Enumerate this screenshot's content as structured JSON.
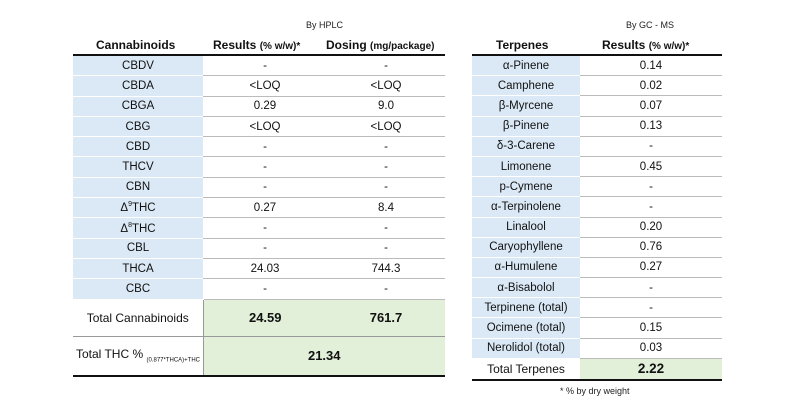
{
  "captions": {
    "hplc": "By HPLC",
    "gcms": "By GC - MS"
  },
  "cannabinoids": {
    "header_name": "Cannabinoids",
    "header_results_main": "Results",
    "header_results_unit": "(% w/w)*",
    "header_dosing_main": "Dosing",
    "header_dosing_unit": "(mg/package)",
    "rows": [
      {
        "name": "CBDV",
        "result": "-",
        "dosing": "-"
      },
      {
        "name": "CBDA",
        "result": "<LOQ",
        "dosing": "<LOQ"
      },
      {
        "name": "CBGA",
        "result": "0.29",
        "dosing": "9.0"
      },
      {
        "name": "CBG",
        "result": "<LOQ",
        "dosing": "<LOQ"
      },
      {
        "name": "CBD",
        "result": "-",
        "dosing": "-"
      },
      {
        "name": "THCV",
        "result": "-",
        "dosing": "-"
      },
      {
        "name": "CBN",
        "result": "-",
        "dosing": "-"
      },
      {
        "name": "THC",
        "prefix": "Δ",
        "sup": "9",
        "result": "0.27",
        "dosing": "8.4"
      },
      {
        "name": "THC",
        "prefix": "Δ",
        "sup": "8",
        "result": "-",
        "dosing": "-"
      },
      {
        "name": "CBL",
        "result": "-",
        "dosing": "-"
      },
      {
        "name": "THCA",
        "result": "24.03",
        "dosing": "744.3"
      },
      {
        "name": "CBC",
        "result": "-",
        "dosing": "-"
      }
    ],
    "total_label": "Total Cannabinoids",
    "total_result": "24.59",
    "total_dosing": "761.7",
    "thc_label": "Total THC %",
    "thc_formula": "(0.877*THCA)+THC",
    "thc_value": "21.34"
  },
  "terpenes": {
    "header_name": "Terpenes",
    "header_results_main": "Results",
    "header_results_unit": "(% w/w)*",
    "rows": [
      {
        "name": "α-Pinene",
        "result": "0.14"
      },
      {
        "name": "Camphene",
        "result": "0.02"
      },
      {
        "name": "β-Myrcene",
        "result": "0.07"
      },
      {
        "name": "β-Pinene",
        "result": "0.13"
      },
      {
        "name": "δ-3-Carene",
        "result": "-"
      },
      {
        "name": "Limonene",
        "result": "0.45"
      },
      {
        "name": "p-Cymene",
        "result": "-"
      },
      {
        "name": "α-Terpinolene",
        "result": "-"
      },
      {
        "name": "Linalool",
        "result": "0.20"
      },
      {
        "name": "Caryophyllene",
        "result": "0.76"
      },
      {
        "name": "α-Humulene",
        "result": "0.27"
      },
      {
        "name": "α-Bisabolol",
        "result": "-"
      },
      {
        "name": "Terpinene (total)",
        "result": "-"
      },
      {
        "name": "Ocimene (total)",
        "result": "0.15"
      },
      {
        "name": "Nerolidol (total)",
        "result": "0.03"
      }
    ],
    "total_label": "Total Terpenes",
    "total_result": "2.22"
  },
  "footnote": "* % by dry weight"
}
